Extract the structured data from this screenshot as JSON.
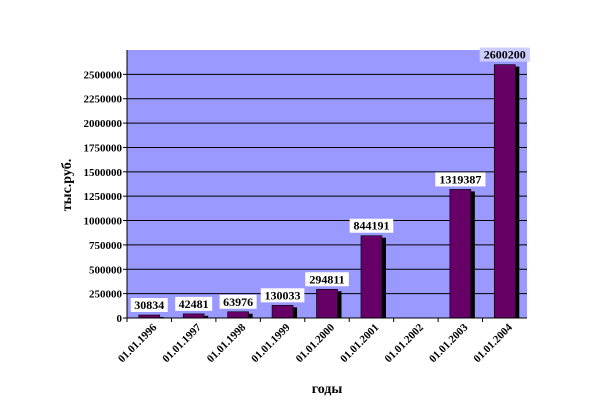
{
  "chart_data": {
    "type": "bar",
    "categories": [
      "01.01.1996",
      "01.01.1997",
      "01.01.1998",
      "01.01.1999",
      "01.01.2000",
      "01.01.2001",
      "01.01.2002",
      "01.01.2003",
      "01.01.2004"
    ],
    "values": [
      30834,
      42481,
      63976,
      130033,
      294811,
      844191,
      null,
      1319387,
      2600200
    ],
    "data_labels": [
      "30834",
      "42481",
      "63976",
      "130033",
      "294811",
      "844191",
      "",
      "1319387",
      "2600200"
    ],
    "yticks": [
      "0",
      "250000",
      "500000",
      "750000",
      "1000000",
      "1250000",
      "1500000",
      "1750000",
      "2000000",
      "2250000",
      "2500000"
    ],
    "ylim": [
      0,
      2750000
    ],
    "ylabel": "тыс.руб.",
    "xlabel": "годы",
    "grid": true,
    "colors": {
      "bar": "#660066",
      "bar_shadow": "#000000",
      "plot_bg": "#9999ff",
      "gridline": "#000000",
      "label_bg": "#ffffff",
      "top_label_bg": "#ccccff"
    }
  }
}
